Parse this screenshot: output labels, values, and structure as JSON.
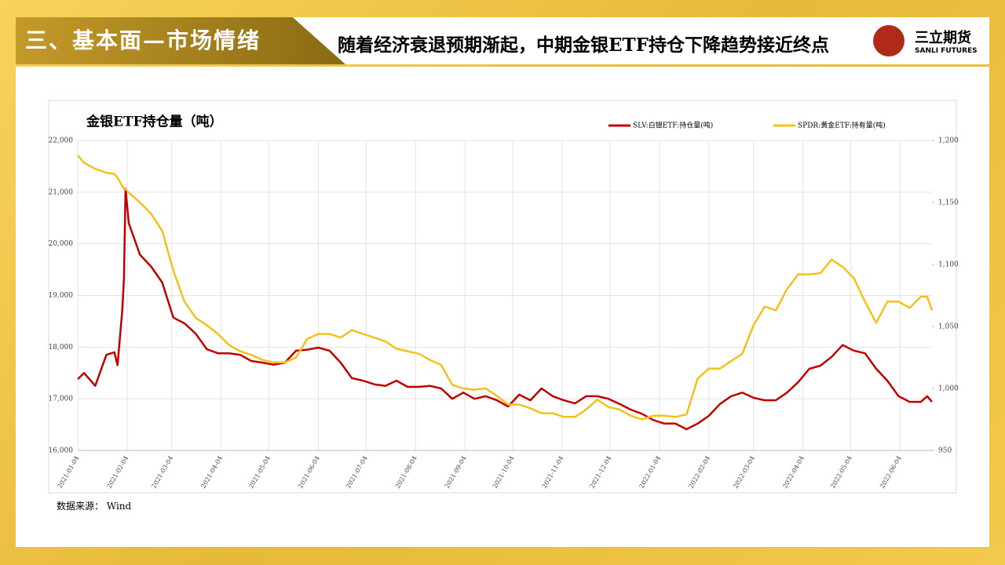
{
  "header": {
    "section": "三、基本面—市场情绪",
    "headline": "随着经济衰退预期渐起，中期金银ETF持仓下降趋势接近终点",
    "logo_name": "三立期货",
    "logo_en": "SANLI FUTURES"
  },
  "source": "数据来源：  Wind",
  "chart_data": {
    "type": "line",
    "title": "金银ETF持仓量（吨）",
    "x": [
      "2021-01-04",
      "2021-01-08",
      "2021-01-15",
      "2021-01-22",
      "2021-01-27",
      "2021-01-29",
      "2021-02-01",
      "2021-02-02",
      "2021-02-03",
      "2021-02-05",
      "2021-02-12",
      "2021-02-19",
      "2021-02-26",
      "2021-03-05",
      "2021-03-12",
      "2021-03-19",
      "2021-03-26",
      "2021-04-02",
      "2021-04-09",
      "2021-04-16",
      "2021-04-23",
      "2021-04-30",
      "2021-05-07",
      "2021-05-14",
      "2021-05-21",
      "2021-05-28",
      "2021-06-04",
      "2021-06-11",
      "2021-06-18",
      "2021-06-25",
      "2021-07-02",
      "2021-07-09",
      "2021-07-16",
      "2021-07-23",
      "2021-07-30",
      "2021-08-06",
      "2021-08-13",
      "2021-08-20",
      "2021-08-27",
      "2021-09-03",
      "2021-09-10",
      "2021-09-17",
      "2021-09-24",
      "2021-10-01",
      "2021-10-08",
      "2021-10-15",
      "2021-10-22",
      "2021-10-29",
      "2021-11-05",
      "2021-11-12",
      "2021-11-19",
      "2021-11-26",
      "2021-12-03",
      "2021-12-10",
      "2021-12-17",
      "2021-12-24",
      "2021-12-31",
      "2022-01-07",
      "2022-01-14",
      "2022-01-21",
      "2022-01-28",
      "2022-02-04",
      "2022-02-11",
      "2022-02-18",
      "2022-02-25",
      "2022-03-04",
      "2022-03-11",
      "2022-03-18",
      "2022-03-25",
      "2022-04-01",
      "2022-04-08",
      "2022-04-15",
      "2022-04-22",
      "2022-04-29",
      "2022-05-06",
      "2022-05-13",
      "2022-05-20",
      "2022-05-27",
      "2022-06-03",
      "2022-06-10",
      "2022-06-17",
      "2022-06-21",
      "2022-06-24"
    ],
    "series": [
      {
        "name": "SLV:白银ETF:持仓量(吨)",
        "color": "#c00000",
        "axis": "y",
        "values": [
          17380,
          17500,
          17250,
          17850,
          17900,
          17650,
          18720,
          19330,
          21070,
          20400,
          19790,
          19560,
          19250,
          18570,
          18460,
          18260,
          17960,
          17880,
          17880,
          17850,
          17730,
          17700,
          17660,
          17700,
          17930,
          17950,
          17990,
          17930,
          17700,
          17400,
          17350,
          17280,
          17250,
          17350,
          17230,
          17230,
          17250,
          17200,
          17000,
          17120,
          17000,
          17050,
          16970,
          16850,
          17080,
          16970,
          17200,
          17050,
          16970,
          16910,
          17050,
          17050,
          17000,
          16900,
          16790,
          16710,
          16590,
          16520,
          16520,
          16410,
          16520,
          16670,
          16900,
          17050,
          17120,
          17020,
          16970,
          16970,
          17120,
          17320,
          17580,
          17640,
          17810,
          18040,
          17930,
          17880,
          17580,
          17350,
          17050,
          16940,
          16940,
          17050,
          16940
        ]
      },
      {
        "name": "SPDR:黄金ETF:持有量(吨)",
        "color": "#f2c21b",
        "axis": "y2",
        "values": [
          1188,
          1182,
          1177,
          1174,
          1173,
          1170,
          1163,
          1161,
          1161,
          1158,
          1150,
          1141,
          1127,
          1095,
          1070,
          1057,
          1051,
          1044,
          1035,
          1030,
          1027,
          1023,
          1021,
          1021,
          1025,
          1040,
          1044,
          1044,
          1041,
          1047,
          1044,
          1041,
          1038,
          1032,
          1030,
          1028,
          1023,
          1019,
          1003,
          1000,
          999,
          1000,
          994,
          987,
          987,
          984,
          980,
          980,
          977,
          977,
          983,
          991,
          985,
          983,
          978,
          975,
          978,
          978,
          977,
          979,
          1008,
          1016,
          1016,
          1022,
          1028,
          1051,
          1066,
          1063,
          1080,
          1092,
          1092,
          1093,
          1104,
          1098,
          1089,
          1070,
          1053,
          1070,
          1070,
          1065,
          1074,
          1074,
          1063
        ]
      }
    ],
    "xlim": [
      "2021-01-04",
      "2022-06-24"
    ],
    "xticks": [
      "2021-01-04",
      "2021-02-04",
      "2021-03-04",
      "2021-04-04",
      "2021-05-04",
      "2021-06-04",
      "2021-07-04",
      "2021-08-04",
      "2021-09-04",
      "2021-10-04",
      "2021-11-04",
      "2021-12-04",
      "2022-01-04",
      "2022-02-04",
      "2022-03-04",
      "2022-04-04",
      "2022-05-04",
      "2022-06-04"
    ],
    "ylim": [
      16000,
      22000
    ],
    "yticks": [
      {
        "value": 16000,
        "label": "16,000"
      },
      {
        "value": 17000,
        "label": "17,000"
      },
      {
        "value": 18000,
        "label": "18,000"
      },
      {
        "value": 19000,
        "label": "19,000"
      },
      {
        "value": 20000,
        "label": "20,000"
      },
      {
        "value": 21000,
        "label": "21,000"
      },
      {
        "value": 22000,
        "label": "22,000"
      }
    ],
    "y2lim": [
      950,
      1200
    ],
    "y2ticks": [
      950,
      {
        "value": 1000,
        "label": "1,000"
      },
      {
        "value": 1050,
        "label": "1,050"
      },
      {
        "value": 1100,
        "label": "1,100"
      },
      {
        "value": 1150,
        "label": "1,150"
      },
      {
        "value": 1200,
        "label": "1,200"
      }
    ],
    "grid": true,
    "legend": "top-right"
  }
}
